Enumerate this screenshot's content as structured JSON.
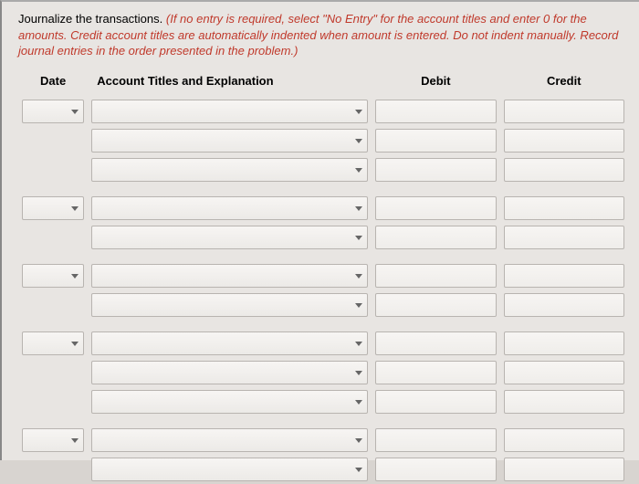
{
  "instructions": {
    "lead": "Journalize the transactions.",
    "note": "(If no entry is required, select \"No Entry\" for the account titles and enter 0 for the amounts. Credit account titles are automatically indented when amount is entered. Do not indent manually. Record journal entries in the order presented in the problem.)"
  },
  "headers": {
    "date": "Date",
    "account": "Account Titles and Explanation",
    "debit": "Debit",
    "credit": "Credit"
  },
  "groups": [
    {
      "rows": 3,
      "hasDate": true
    },
    {
      "rows": 2,
      "hasDate": true
    },
    {
      "rows": 2,
      "hasDate": true
    },
    {
      "rows": 3,
      "hasDate": true
    },
    {
      "rows": 2,
      "hasDate": true
    }
  ],
  "colors": {
    "note": "#c0392b",
    "border": "#b8b4b0",
    "pageBg": "#e8e5e2"
  }
}
